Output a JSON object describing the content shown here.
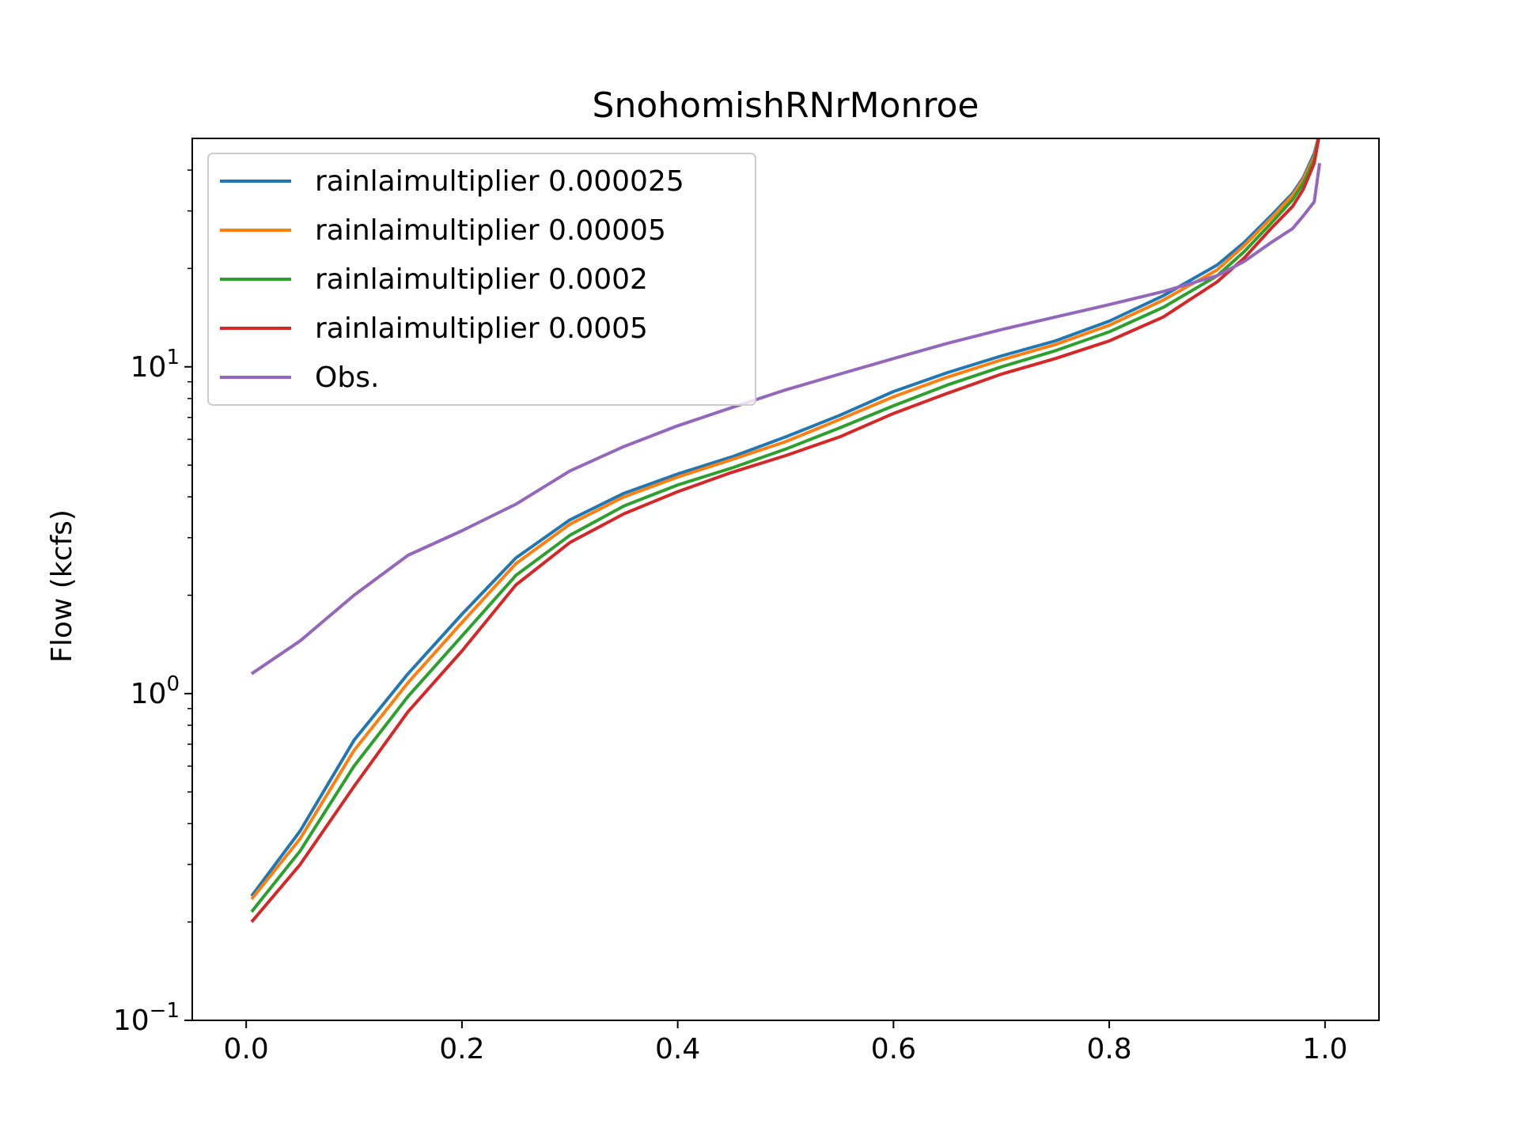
{
  "chart_data": {
    "type": "line",
    "title": "SnohomishRNrMonroe",
    "xlabel": "",
    "ylabel": "Flow (kcfs)",
    "xlim": [
      -0.05,
      1.05
    ],
    "ylim": [
      0.1,
      50
    ],
    "yscale": "log",
    "grid": false,
    "legend_position": "upper-left",
    "xticks": [
      {
        "value": 0.0,
        "label": "0.0"
      },
      {
        "value": 0.2,
        "label": "0.2"
      },
      {
        "value": 0.4,
        "label": "0.4"
      },
      {
        "value": 0.6,
        "label": "0.6"
      },
      {
        "value": 0.8,
        "label": "0.8"
      },
      {
        "value": 1.0,
        "label": "1.0"
      }
    ],
    "yticks": [
      {
        "value": 0.1,
        "base": "10",
        "exp": "−1"
      },
      {
        "value": 1,
        "base": "10",
        "exp": "0"
      },
      {
        "value": 10,
        "base": "10",
        "exp": "1"
      }
    ],
    "x": [
      0.005,
      0.05,
      0.1,
      0.15,
      0.2,
      0.25,
      0.3,
      0.35,
      0.4,
      0.45,
      0.5,
      0.55,
      0.6,
      0.65,
      0.7,
      0.75,
      0.8,
      0.85,
      0.9,
      0.925,
      0.95,
      0.97,
      0.98,
      0.99,
      0.995
    ],
    "series": [
      {
        "name": "rainlaimultiplier 0.000025",
        "color": "#1f77b4",
        "values": [
          0.24,
          0.38,
          0.72,
          1.15,
          1.75,
          2.6,
          3.4,
          4.1,
          4.7,
          5.3,
          6.1,
          7.1,
          8.4,
          9.6,
          10.8,
          12.0,
          13.8,
          16.5,
          20.5,
          24.0,
          29.0,
          34.0,
          38.0,
          45.0,
          52.0
        ]
      },
      {
        "name": "rainlaimultiplier 0.00005",
        "color": "#ff7f0e",
        "values": [
          0.235,
          0.36,
          0.67,
          1.08,
          1.65,
          2.5,
          3.3,
          4.0,
          4.6,
          5.2,
          5.9,
          6.9,
          8.1,
          9.3,
          10.5,
          11.7,
          13.4,
          16.0,
          19.8,
          23.5,
          28.5,
          33.5,
          37.5,
          44.0,
          52.0
        ]
      },
      {
        "name": "rainlaimultiplier 0.0002",
        "color": "#2ca02c",
        "values": [
          0.215,
          0.33,
          0.6,
          0.98,
          1.5,
          2.3,
          3.05,
          3.75,
          4.35,
          4.9,
          5.6,
          6.5,
          7.6,
          8.8,
          10.0,
          11.2,
          12.8,
          15.2,
          19.0,
          22.5,
          27.5,
          32.5,
          36.5,
          43.0,
          52.0
        ]
      },
      {
        "name": "rainlaimultiplier 0.0005",
        "color": "#d62728",
        "values": [
          0.2,
          0.3,
          0.52,
          0.88,
          1.35,
          2.15,
          2.9,
          3.55,
          4.15,
          4.75,
          5.35,
          6.1,
          7.2,
          8.3,
          9.5,
          10.6,
          12.0,
          14.2,
          18.2,
          21.5,
          26.5,
          31.0,
          35.0,
          42.0,
          52.0
        ]
      },
      {
        "name": "Obs.",
        "color": "#9467bd",
        "values": [
          1.15,
          1.45,
          2.0,
          2.65,
          3.15,
          3.8,
          4.8,
          5.7,
          6.6,
          7.5,
          8.5,
          9.5,
          10.6,
          11.8,
          13.0,
          14.2,
          15.5,
          17.0,
          19.0,
          21.0,
          24.0,
          26.5,
          29.0,
          32.0,
          42.0
        ]
      }
    ]
  }
}
